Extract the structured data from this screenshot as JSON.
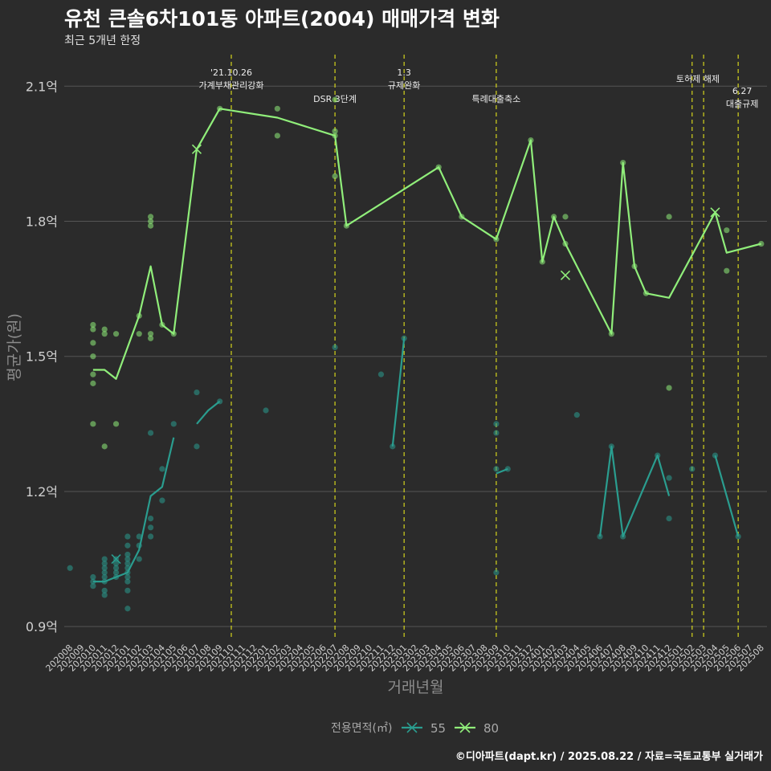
{
  "title": "유천 큰솔6차101동 아파트(2004) 매매가격 변화",
  "subtitle": "최근 5개년 한정",
  "caption": "©디아파트(dapt.kr) / 2025.08.22 / 자료=국토교통부 실거래가",
  "colors": {
    "s55": "#2a9d8f",
    "s80": "#90ee7a",
    "vline": "#d4d41c",
    "grid": "#555555",
    "background": "#2b2b2b"
  },
  "chart_data": {
    "type": "line",
    "xlabel": "거래년월",
    "ylabel": "평균가(원)",
    "ylim": [
      0.87,
      2.17
    ],
    "yticks": [
      {
        "value": 0.9,
        "label": "0.9억"
      },
      {
        "value": 1.2,
        "label": "1.2억"
      },
      {
        "value": 1.5,
        "label": "1.5억"
      },
      {
        "value": 1.8,
        "label": "1.8억"
      },
      {
        "value": 2.1,
        "label": "2.1억"
      }
    ],
    "x": [
      "202008",
      "202009",
      "202010",
      "202011",
      "202012",
      "202101",
      "202102",
      "202103",
      "202104",
      "202105",
      "202106",
      "202107",
      "202108",
      "202109",
      "202110",
      "202111",
      "202112",
      "202201",
      "202202",
      "202203",
      "202204",
      "202205",
      "202206",
      "202207",
      "202208",
      "202209",
      "202210",
      "202211",
      "202212",
      "202301",
      "202302",
      "202303",
      "202304",
      "202305",
      "202306",
      "202307",
      "202308",
      "202309",
      "202310",
      "202311",
      "202312",
      "202401",
      "202402",
      "202403",
      "202404",
      "202405",
      "202406",
      "202407",
      "202408",
      "202409",
      "202410",
      "202411",
      "202412",
      "202501",
      "202502",
      "202503",
      "202504",
      "202505",
      "202506",
      "202507",
      "202508"
    ],
    "legend": {
      "title": "전용면적(㎡)",
      "items": [
        "55",
        "80"
      ],
      "position": "bottom"
    },
    "series": [
      {
        "name": "55",
        "color": "#2a9d8f",
        "line": [
          [
            [
              "202010",
              1.0
            ],
            [
              "202011",
              1.0
            ],
            [
              "202012",
              1.01
            ],
            [
              "202101",
              1.02
            ],
            [
              "202102",
              1.07
            ],
            [
              "202103",
              1.19
            ],
            [
              "202104",
              1.21
            ],
            [
              "202105",
              1.32
            ]
          ],
          [
            [
              "202107",
              1.35
            ],
            [
              "202108",
              1.38
            ],
            [
              "202109",
              1.4
            ]
          ],
          [
            [
              "202212",
              1.3
            ],
            [
              "202301",
              1.54
            ]
          ],
          [
            [
              "202309",
              1.24
            ],
            [
              "202310",
              1.25
            ]
          ],
          [
            [
              "202406",
              1.1
            ],
            [
              "202407",
              1.3
            ],
            [
              "202408",
              1.1
            ],
            [
              "202411",
              1.28
            ],
            [
              "202412",
              1.19
            ]
          ],
          [
            [
              "202504",
              1.28
            ],
            [
              "202506",
              1.1
            ]
          ]
        ],
        "points": [
          [
            "202008",
            1.03
          ],
          [
            "202010",
            0.99
          ],
          [
            "202010",
            1.0
          ],
          [
            "202010",
            1.01
          ],
          [
            "202011",
            0.97
          ],
          [
            "202011",
            0.98
          ],
          [
            "202011",
            1.0
          ],
          [
            "202011",
            1.01
          ],
          [
            "202011",
            1.02
          ],
          [
            "202011",
            1.03
          ],
          [
            "202011",
            1.04
          ],
          [
            "202011",
            1.05
          ],
          [
            "202012",
            1.01
          ],
          [
            "202012",
            1.02
          ],
          [
            "202012",
            1.03
          ],
          [
            "202012",
            1.04
          ],
          [
            "202012",
            1.05
          ],
          [
            "202101",
            0.98
          ],
          [
            "202101",
            1.0
          ],
          [
            "202101",
            1.01
          ],
          [
            "202101",
            1.02
          ],
          [
            "202101",
            1.03
          ],
          [
            "202101",
            1.04
          ],
          [
            "202101",
            1.05
          ],
          [
            "202101",
            1.06
          ],
          [
            "202101",
            1.08
          ],
          [
            "202101",
            1.1
          ],
          [
            "202101",
            0.94
          ],
          [
            "202102",
            1.05
          ],
          [
            "202102",
            1.08
          ],
          [
            "202102",
            1.1
          ],
          [
            "202103",
            1.1
          ],
          [
            "202103",
            1.12
          ],
          [
            "202103",
            1.14
          ],
          [
            "202103",
            1.33
          ],
          [
            "202104",
            1.18
          ],
          [
            "202104",
            1.25
          ],
          [
            "202105",
            1.35
          ],
          [
            "202107",
            1.3
          ],
          [
            "202107",
            1.42
          ],
          [
            "202109",
            1.4
          ],
          [
            "202201",
            1.38
          ],
          [
            "202207",
            1.52
          ],
          [
            "202211",
            1.46
          ],
          [
            "202212",
            1.3
          ],
          [
            "202301",
            1.54
          ],
          [
            "202309",
            1.02
          ],
          [
            "202309",
            1.25
          ],
          [
            "202309",
            1.33
          ],
          [
            "202309",
            1.35
          ],
          [
            "202310",
            1.25
          ],
          [
            "202404",
            1.37
          ],
          [
            "202406",
            1.1
          ],
          [
            "202407",
            1.3
          ],
          [
            "202408",
            1.1
          ],
          [
            "202411",
            1.28
          ],
          [
            "202412",
            1.14
          ],
          [
            "202412",
            1.23
          ],
          [
            "202502",
            1.25
          ],
          [
            "202504",
            1.28
          ],
          [
            "202506",
            1.1
          ]
        ],
        "markers": [
          [
            "202012",
            1.05
          ]
        ]
      },
      {
        "name": "80",
        "color": "#90ee7a",
        "line": [
          [
            [
              "202010",
              1.47
            ],
            [
              "202011",
              1.47
            ],
            [
              "202012",
              1.45
            ],
            [
              "202102",
              1.59
            ],
            [
              "202103",
              1.7
            ],
            [
              "202104",
              1.57
            ],
            [
              "202105",
              1.55
            ],
            [
              "202107",
              1.96
            ],
            [
              "202109",
              2.05
            ],
            [
              "202202",
              2.03
            ],
            [
              "202207",
              1.99
            ],
            [
              "202208",
              1.79
            ],
            [
              "202304",
              1.92
            ],
            [
              "202306",
              1.81
            ],
            [
              "202309",
              1.76
            ],
            [
              "202312",
              1.98
            ],
            [
              "202401",
              1.71
            ],
            [
              "202402",
              1.81
            ],
            [
              "202403",
              1.75
            ],
            [
              "202407",
              1.55
            ],
            [
              "202408",
              1.93
            ],
            [
              "202409",
              1.7
            ],
            [
              "202410",
              1.64
            ],
            [
              "202412",
              1.63
            ],
            [
              "202504",
              1.82
            ],
            [
              "202505",
              1.73
            ],
            [
              "202508",
              1.75
            ]
          ]
        ],
        "points": [
          [
            "202010",
            1.56
          ],
          [
            "202010",
            1.57
          ],
          [
            "202010",
            1.53
          ],
          [
            "202010",
            1.5
          ],
          [
            "202010",
            1.46
          ],
          [
            "202010",
            1.44
          ],
          [
            "202010",
            1.35
          ],
          [
            "202011",
            1.56
          ],
          [
            "202011",
            1.55
          ],
          [
            "202011",
            1.3
          ],
          [
            "202012",
            1.55
          ],
          [
            "202012",
            1.35
          ],
          [
            "202102",
            1.59
          ],
          [
            "202102",
            1.55
          ],
          [
            "202103",
            1.79
          ],
          [
            "202103",
            1.8
          ],
          [
            "202103",
            1.81
          ],
          [
            "202103",
            1.55
          ],
          [
            "202103",
            1.54
          ],
          [
            "202104",
            1.57
          ],
          [
            "202105",
            1.55
          ],
          [
            "202109",
            2.05
          ],
          [
            "202202",
            2.05
          ],
          [
            "202202",
            1.99
          ],
          [
            "202207",
            1.99
          ],
          [
            "202207",
            2.0
          ],
          [
            "202207",
            2.07
          ],
          [
            "202207",
            1.9
          ],
          [
            "202208",
            1.79
          ],
          [
            "202304",
            1.92
          ],
          [
            "202306",
            1.81
          ],
          [
            "202309",
            1.76
          ],
          [
            "202312",
            1.98
          ],
          [
            "202401",
            1.71
          ],
          [
            "202402",
            1.81
          ],
          [
            "202403",
            1.81
          ],
          [
            "202403",
            1.75
          ],
          [
            "202407",
            1.55
          ],
          [
            "202408",
            1.93
          ],
          [
            "202409",
            1.7
          ],
          [
            "202410",
            1.64
          ],
          [
            "202412",
            1.81
          ],
          [
            "202412",
            1.43
          ],
          [
            "202505",
            1.78
          ],
          [
            "202505",
            1.69
          ],
          [
            "202508",
            1.75
          ]
        ],
        "markers": [
          [
            "202107",
            1.96
          ],
          [
            "202403",
            1.68
          ],
          [
            "202504",
            1.82
          ]
        ]
      }
    ],
    "vlines": [
      {
        "x": "202110",
        "label": [
          "'21.10.26",
          "가계부채관리강화"
        ]
      },
      {
        "x": "202207",
        "label": [
          "DSR 3단계"
        ]
      },
      {
        "x": "202301",
        "label": [
          "1.3",
          "규제완화"
        ]
      },
      {
        "x": "202309",
        "label": [
          "특례대출축소"
        ]
      },
      {
        "x": "202502",
        "label": [
          "토허제 해제"
        ]
      },
      {
        "x": "202503",
        "label": []
      },
      {
        "x": "202506",
        "label": [
          "6.27",
          "대출규제"
        ]
      }
    ]
  }
}
